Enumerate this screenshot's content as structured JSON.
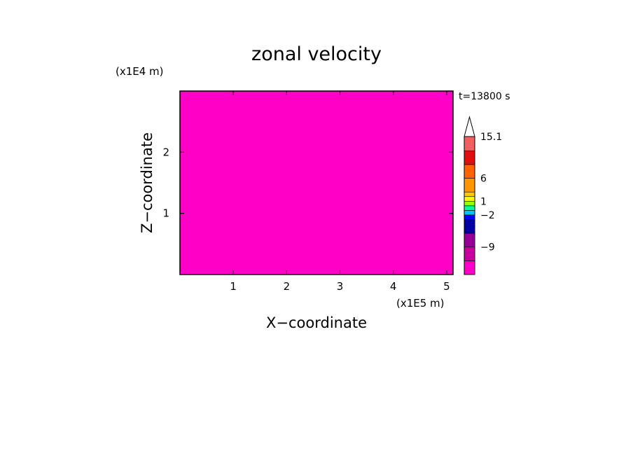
{
  "chart_data": {
    "type": "heatmap",
    "title": "zonal velocity",
    "xlabel": "X−coordinate",
    "ylabel": "Z−coordinate",
    "x_unit": "(x1E5 m)",
    "y_unit": "(x1E4 m)",
    "time_label": "t=13800 s",
    "xlim": [
      0.0,
      5.12
    ],
    "ylim": [
      0.0,
      3.0
    ],
    "x_ticks": [
      1,
      2,
      3,
      4,
      5
    ],
    "y_ticks": [
      1,
      2
    ],
    "colorbar": {
      "levels": [
        -15,
        -12,
        -9,
        -6,
        -3,
        -2,
        -1,
        0,
        1,
        2,
        3,
        6,
        9,
        12,
        15.1
      ],
      "colors": [
        "#ff00c8",
        "#c800a0",
        "#960096",
        "#0000a0",
        "#0000ff",
        "#00c8ff",
        "#00ff96",
        "#96ff00",
        "#ffff00",
        "#ffc800",
        "#ff9600",
        "#ff6400",
        "#e01010",
        "#f06060",
        "#ffbcbc"
      ],
      "labels": [
        {
          "value": 15.1,
          "text": "15.1"
        },
        {
          "value": 6,
          "text": "6"
        },
        {
          "value": 1,
          "text": "1"
        },
        {
          "value": -2,
          "text": "−2"
        },
        {
          "value": -9,
          "text": "−9"
        }
      ]
    },
    "grid": false
  }
}
